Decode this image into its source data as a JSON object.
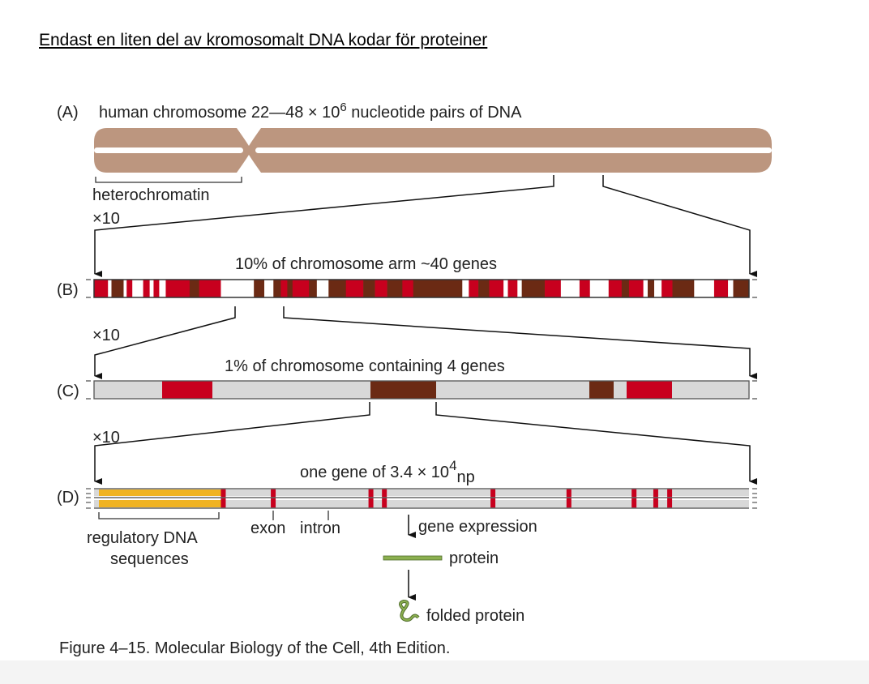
{
  "heading": "Endast en liten del av kromosomalt DNA kodar för proteiner",
  "panels": {
    "a": {
      "label": "(A)",
      "title_pre": "human chromosome 22—48 × 10",
      "title_sup": "6",
      "title_post": " nucleotide pairs of DNA",
      "bracket_label": "heterochromatin"
    },
    "b": {
      "label": "(B)",
      "title": "10% of chromosome arm ~40 genes",
      "zoom": "×10"
    },
    "c": {
      "label": "(C)",
      "title": "1% of chromosome containing 4 genes",
      "zoom": "×10"
    },
    "d": {
      "label": "(D)",
      "title_pre": "one gene of 3.4 × 10",
      "title_sup": "4",
      "title_sub": "np",
      "zoom": "×10",
      "regulatory": [
        "regulatory DNA",
        "sequences"
      ],
      "exon": "exon",
      "intron": "intron"
    }
  },
  "expression": {
    "step1": "gene expression",
    "protein": "protein",
    "folded": "folded protein"
  },
  "caption": "Figure 4–15. Molecular Biology of the Cell, 4th Edition.",
  "colors": {
    "chromosome": "#bc967f",
    "exon_red": "#c8001e",
    "gene_brown": "#6b2a14",
    "grey": "#d8d8d8",
    "regulatory": "#f0b323",
    "protein": "#8cb050"
  }
}
